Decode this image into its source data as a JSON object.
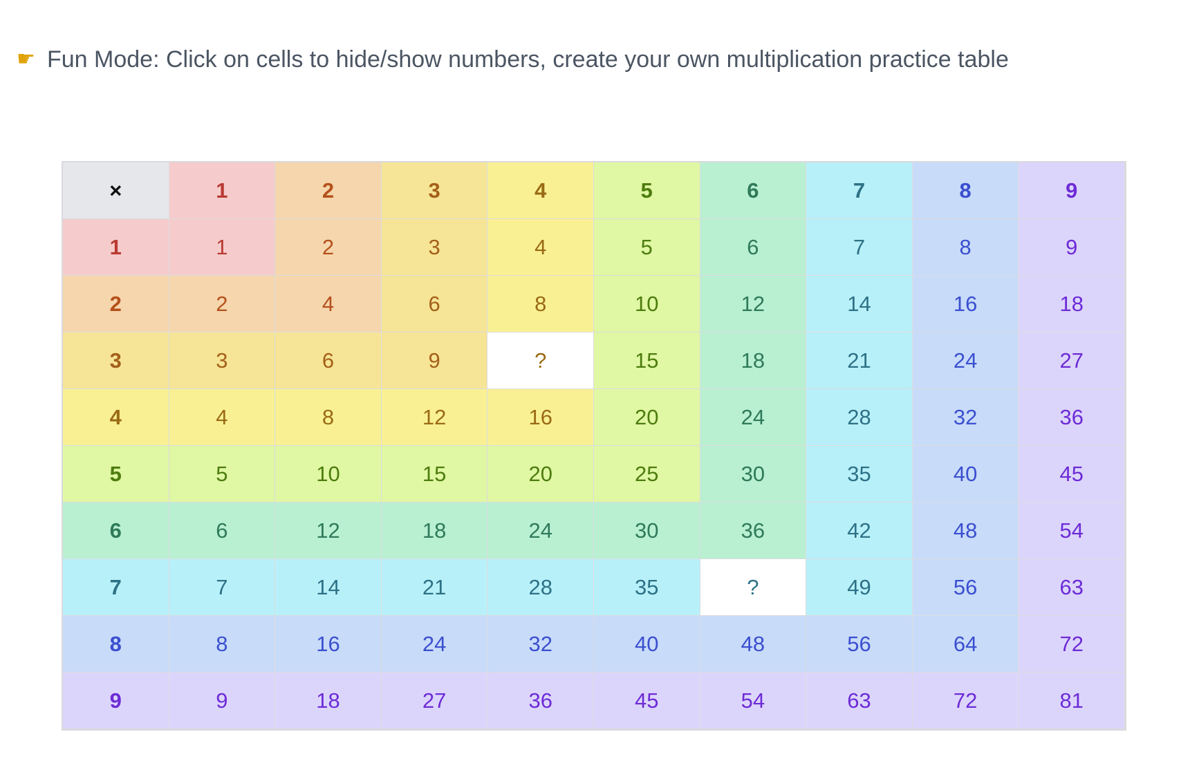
{
  "tip": {
    "icon": "pointing-hand-icon",
    "text": "Fun Mode: Click on cells to hide/show numbers, create your own multiplication practice table"
  },
  "table": {
    "corner_label": "×",
    "headers": [
      "1",
      "2",
      "3",
      "4",
      "5",
      "6",
      "7",
      "8",
      "9"
    ],
    "hidden_placeholder": "?",
    "rows": [
      [
        "1",
        "2",
        "3",
        "4",
        "5",
        "6",
        "7",
        "8",
        "9"
      ],
      [
        "2",
        "4",
        "6",
        "8",
        "10",
        "12",
        "14",
        "16",
        "18"
      ],
      [
        "3",
        "6",
        "9",
        "?",
        "15",
        "18",
        "21",
        "24",
        "27"
      ],
      [
        "4",
        "8",
        "12",
        "16",
        "20",
        "24",
        "28",
        "32",
        "36"
      ],
      [
        "5",
        "10",
        "15",
        "20",
        "25",
        "30",
        "35",
        "40",
        "45"
      ],
      [
        "6",
        "12",
        "18",
        "24",
        "30",
        "36",
        "42",
        "48",
        "54"
      ],
      [
        "7",
        "14",
        "21",
        "28",
        "35",
        "?",
        "49",
        "56",
        "63"
      ],
      [
        "8",
        "16",
        "24",
        "32",
        "40",
        "48",
        "56",
        "64",
        "72"
      ],
      [
        "9",
        "18",
        "27",
        "36",
        "45",
        "54",
        "63",
        "72",
        "81"
      ]
    ],
    "palette": [
      {
        "bg": "#f5cccb",
        "fg": "#b93a32"
      },
      {
        "bg": "#f5d6ad",
        "fg": "#b5511c"
      },
      {
        "bg": "#f6e596",
        "fg": "#a5601a"
      },
      {
        "bg": "#f9f094",
        "fg": "#9a6a14"
      },
      {
        "bg": "#e0f7a3",
        "fg": "#4d7c0f"
      },
      {
        "bg": "#b9f0d2",
        "fg": "#2f7a5a"
      },
      {
        "bg": "#b8f0f9",
        "fg": "#2d7186"
      },
      {
        "bg": "#c8dbf9",
        "fg": "#3b4fd0"
      },
      {
        "bg": "#dcd5fb",
        "fg": "#6d2bd6"
      }
    ]
  }
}
